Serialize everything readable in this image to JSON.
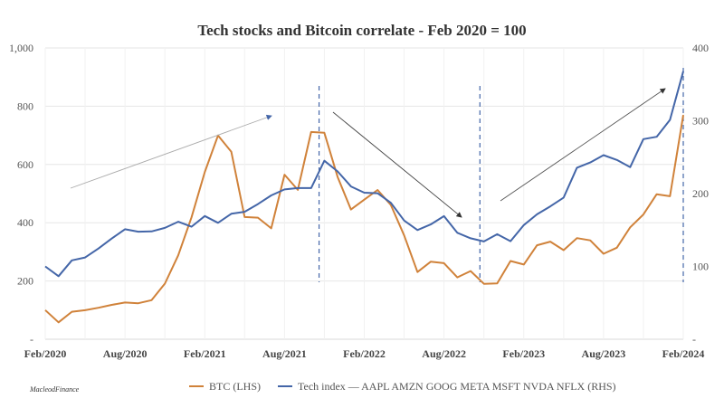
{
  "chart_data": {
    "type": "line",
    "title": "Tech stocks and Bitcoin correlate - Feb 2020 = 100",
    "x_ticks": [
      "Feb/2020",
      "Aug/2020",
      "Feb/2021",
      "Aug/2021",
      "Feb/2022",
      "Aug/2022",
      "Feb/2023",
      "Aug/2023",
      "Feb/2024"
    ],
    "x_months": 49,
    "y_left": {
      "ticks": [
        "-",
        "200",
        "400",
        "600",
        "800",
        "1,000"
      ],
      "values": [
        0,
        200,
        400,
        600,
        800,
        1000
      ],
      "ylim": [
        0,
        1000
      ]
    },
    "y_right": {
      "ticks": [
        "100",
        "200",
        "300",
        "400"
      ],
      "values": [
        100,
        200,
        300,
        400
      ],
      "ylim": [
        0,
        400
      ]
    },
    "grid": true,
    "legend_position": "bottom",
    "series": [
      {
        "name": "BTC (LHS)",
        "axis": "left",
        "color": "#D0823A",
        "values": [
          100,
          65,
          85,
          105,
          110,
          110,
          135,
          120,
          130,
          200,
          280,
          420,
          580,
          690,
          650,
          420,
          410,
          390,
          560,
          510,
          720,
          700,
          560,
          450,
          470,
          520,
          460,
          350,
          240,
          260,
          260,
          220,
          225,
          195,
          195,
          260,
          265,
          320,
          330,
          315,
          340,
          340,
          300,
          305,
          390,
          430,
          490,
          500,
          770
        ]
      },
      {
        "name": "Tech index — AAPL AMZN GOOG META MSFT NVDA NFLX (RHS)",
        "axis": "right",
        "color": "#4466A8",
        "values": [
          100,
          86,
          106,
          116,
          122,
          138,
          154,
          144,
          150,
          154,
          158,
          158,
          168,
          158,
          176,
          172,
          186,
          200,
          202,
          210,
          208,
          242,
          234,
          208,
          200,
          204,
          184,
          164,
          152,
          154,
          172,
          146,
          136,
          138,
          142,
          134,
          160,
          168,
          184,
          196,
          232,
          246,
          252,
          244,
          240,
          272,
          278,
          304,
          368
        ]
      }
    ],
    "annotations": {
      "dashed_lines_month_index": [
        20.6,
        32.7,
        48
      ],
      "trend_arrows": [
        "up",
        "down",
        "up"
      ]
    }
  },
  "branding": "MacleodFinance",
  "colors": {
    "btc": "#D0823A",
    "tech": "#4466A8",
    "dash": "#4466A8",
    "arrow": "#555555"
  }
}
